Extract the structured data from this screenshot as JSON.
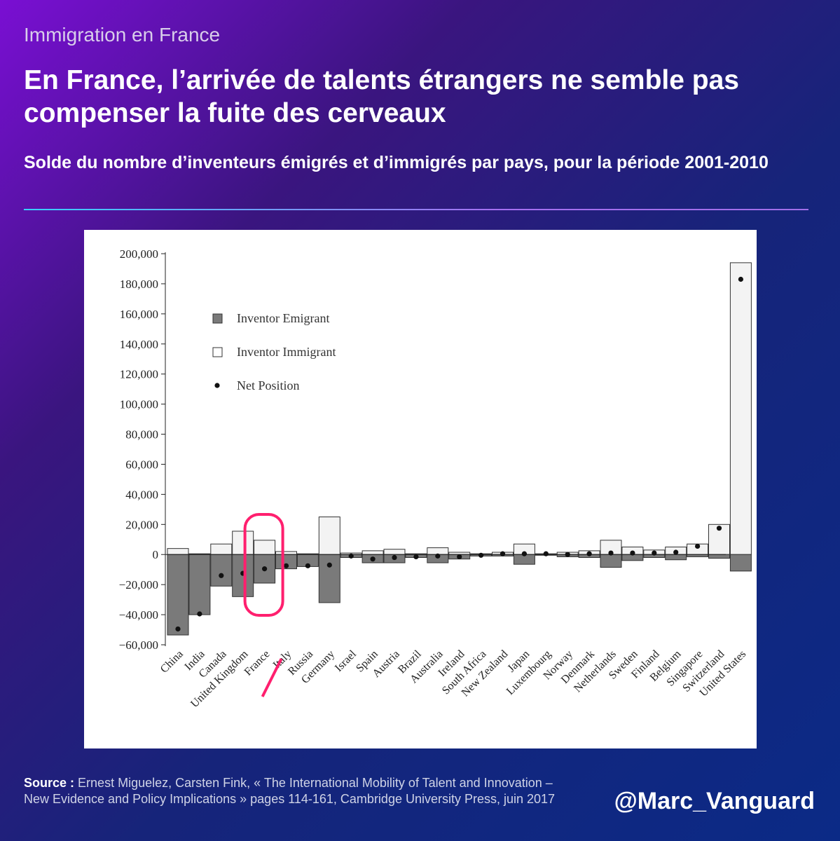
{
  "header": {
    "kicker": "Immigration en France",
    "headline": "En France, l’arrivée de talents étrangers ne semble pas compenser la fuite des cerveaux",
    "subtitle": "Solde du nombre d’inventeurs émigrés et d’immigrés par pays, pour la période 2001-2010"
  },
  "colors": {
    "emigrant_fill": "#7a7a7a",
    "immigrant_fill": "#f3f3f3",
    "highlight": "#ff1f6e",
    "divider_start": "#37d0ff",
    "divider_end": "#a46ff0"
  },
  "chart_data": {
    "type": "bar",
    "ylim": [
      -60000,
      200000
    ],
    "yticks": [
      200000,
      180000,
      160000,
      140000,
      120000,
      100000,
      80000,
      60000,
      40000,
      20000,
      0,
      -20000,
      -40000,
      -60000
    ],
    "ytick_labels": [
      "200,000",
      "180,000",
      "160,000",
      "140,000",
      "120,000",
      "100,000",
      "80,000",
      "60,000",
      "40,000",
      "20,000",
      "0",
      "−20,000",
      "−40,000",
      "−60,000"
    ],
    "categories": [
      "China",
      "India",
      "Canada",
      "United Kingdom",
      "France",
      "Italy",
      "Russia",
      "Germany",
      "Israel",
      "Spain",
      "Austria",
      "Brazil",
      "Australia",
      "Ireland",
      "South Africa",
      "New Zealand",
      "Japan",
      "Luxembourg",
      "Norway",
      "Denmark",
      "Netherlands",
      "Sweden",
      "Finland",
      "Belgium",
      "Singapore",
      "Switzerland",
      "United States"
    ],
    "series": [
      {
        "name": "Inventor Emigrant",
        "values": [
          -53500,
          -40000,
          -21000,
          -28000,
          -19000,
          -9500,
          -8000,
          -32000,
          -2000,
          -5500,
          -5500,
          -2000,
          -5500,
          -3000,
          -1000,
          -1000,
          -6500,
          -500,
          -1500,
          -2000,
          -8500,
          -4000,
          -2000,
          -3500,
          -1500,
          -2500,
          -11000
        ]
      },
      {
        "name": "Inventor Immigrant",
        "values": [
          4000,
          500,
          7000,
          15500,
          9500,
          2000,
          500,
          25000,
          1000,
          2500,
          3500,
          500,
          4500,
          1500,
          500,
          1500,
          7000,
          500,
          1500,
          2500,
          9500,
          5000,
          3000,
          5000,
          7000,
          20000,
          194000
        ]
      },
      {
        "name": "Net Position",
        "values": [
          -49500,
          -39500,
          -14000,
          -12500,
          -9500,
          -7500,
          -7500,
          -7000,
          -1000,
          -3000,
          -2000,
          -1500,
          -1000,
          -1500,
          -500,
          500,
          500,
          500,
          0,
          500,
          1000,
          1000,
          1000,
          1500,
          5500,
          17500,
          183000
        ]
      }
    ],
    "legend": [
      "Inventor Emigrant",
      "Inventor Immigrant",
      "Net Position"
    ],
    "legend_position": "top-left",
    "highlighted_category": "France"
  },
  "footer": {
    "source_label": "Source :",
    "source_text": "Ernest Miguelez, Carsten Fink, « The International Mobility of Talent and Innovation – New Evidence and Policy Implications » pages 114-161, Cambridge University Press, juin 2017",
    "handle": "@Marc_Vanguard"
  }
}
